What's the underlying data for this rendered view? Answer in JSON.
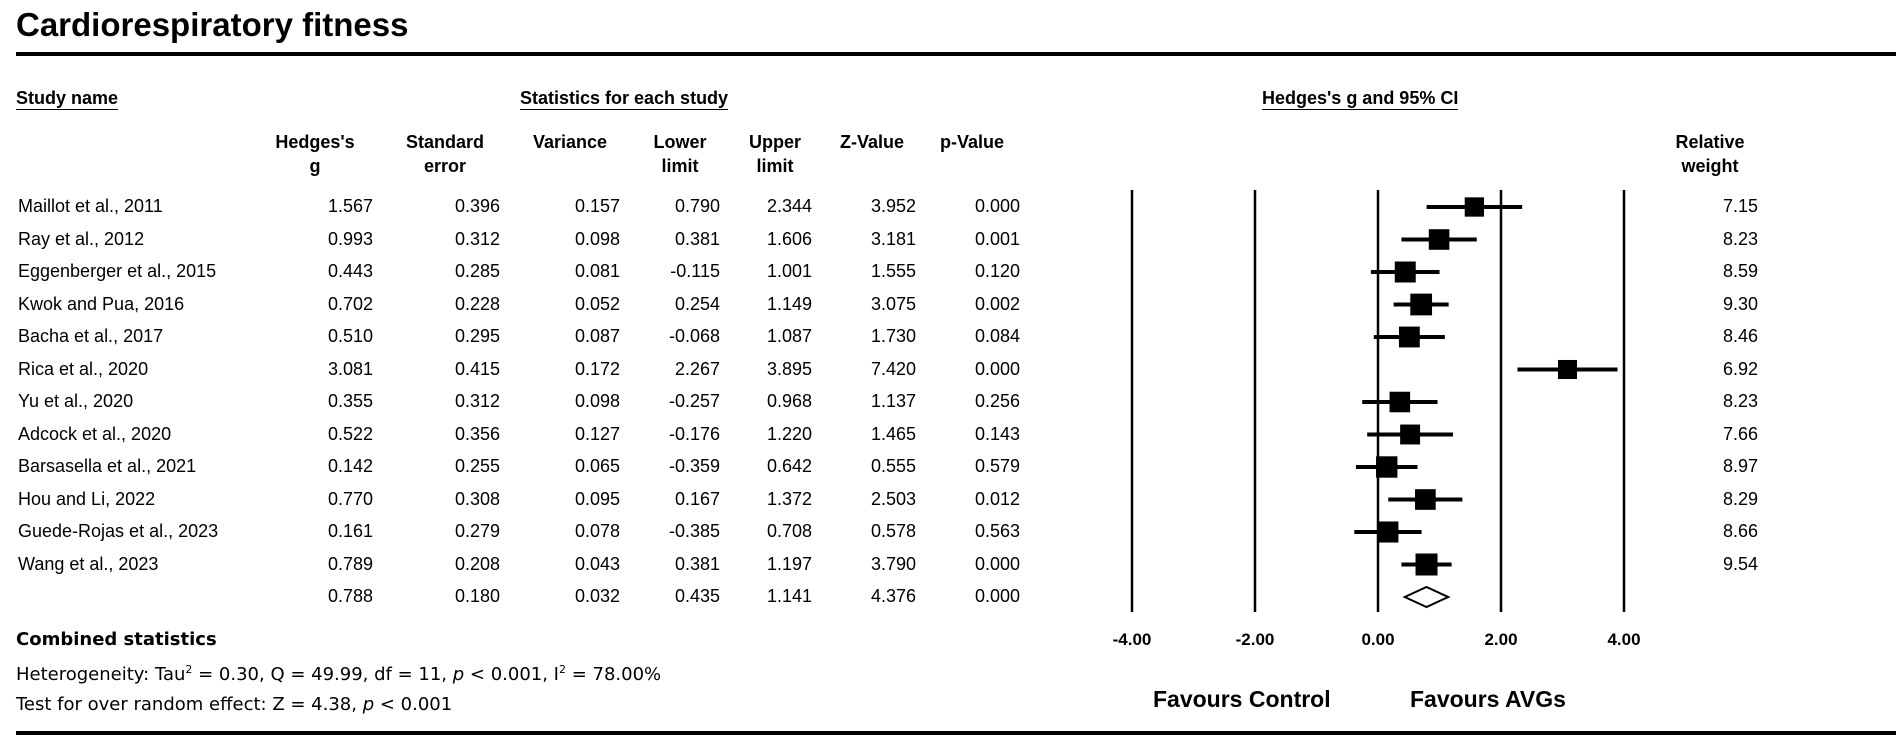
{
  "title": "Cardiorespiratory fitness",
  "headers": {
    "study_name": "Study name",
    "stats_group": "Statistics for each study",
    "plot_group": "Hedges's g and 95% CI",
    "columns": [
      {
        "line1": "Hedges's",
        "line2": "g"
      },
      {
        "line1": "Standard",
        "line2": "error"
      },
      {
        "line1": "",
        "line2": "Variance"
      },
      {
        "line1": "Lower",
        "line2": "limit"
      },
      {
        "line1": "Upper",
        "line2": "limit"
      },
      {
        "line1": "",
        "line2": "Z-Value"
      },
      {
        "line1": "",
        "line2": "p-Value"
      }
    ],
    "weight": {
      "line1": "Relative",
      "line2": "weight"
    }
  },
  "rows": [
    {
      "study": "Maillot et al., 2011",
      "g": "1.567",
      "se": "0.396",
      "var": "0.157",
      "lower": "0.790",
      "upper": "2.344",
      "z": "3.952",
      "p": "0.000",
      "weight": "7.15"
    },
    {
      "study": "Ray et al., 2012",
      "g": "0.993",
      "se": "0.312",
      "var": "0.098",
      "lower": "0.381",
      "upper": "1.606",
      "z": "3.181",
      "p": "0.001",
      "weight": "8.23"
    },
    {
      "study": "Eggenberger et al., 2015",
      "g": "0.443",
      "se": "0.285",
      "var": "0.081",
      "lower": "-0.115",
      "upper": "1.001",
      "z": "1.555",
      "p": "0.120",
      "weight": "8.59"
    },
    {
      "study": "Kwok and Pua, 2016",
      "g": "0.702",
      "se": "0.228",
      "var": "0.052",
      "lower": "0.254",
      "upper": "1.149",
      "z": "3.075",
      "p": "0.002",
      "weight": "9.30"
    },
    {
      "study": "Bacha et al., 2017",
      "g": "0.510",
      "se": "0.295",
      "var": "0.087",
      "lower": "-0.068",
      "upper": "1.087",
      "z": "1.730",
      "p": "0.084",
      "weight": "8.46"
    },
    {
      "study": "Rica et al., 2020",
      "g": "3.081",
      "se": "0.415",
      "var": "0.172",
      "lower": "2.267",
      "upper": "3.895",
      "z": "7.420",
      "p": "0.000",
      "weight": "6.92"
    },
    {
      "study": "Yu et al., 2020",
      "g": "0.355",
      "se": "0.312",
      "var": "0.098",
      "lower": "-0.257",
      "upper": "0.968",
      "z": "1.137",
      "p": "0.256",
      "weight": "8.23"
    },
    {
      "study": "Adcock et al., 2020",
      "g": "0.522",
      "se": "0.356",
      "var": "0.127",
      "lower": "-0.176",
      "upper": "1.220",
      "z": "1.465",
      "p": "0.143",
      "weight": "7.66"
    },
    {
      "study": "Barsasella et al., 2021",
      "g": "0.142",
      "se": "0.255",
      "var": "0.065",
      "lower": "-0.359",
      "upper": "0.642",
      "z": "0.555",
      "p": "0.579",
      "weight": "8.97"
    },
    {
      "study": "Hou and Li, 2022",
      "g": "0.770",
      "se": "0.308",
      "var": "0.095",
      "lower": "0.167",
      "upper": "1.372",
      "z": "2.503",
      "p": "0.012",
      "weight": "8.29"
    },
    {
      "study": "Guede-Rojas et al., 2023",
      "g": "0.161",
      "se": "0.279",
      "var": "0.078",
      "lower": "-0.385",
      "upper": "0.708",
      "z": "0.578",
      "p": "0.563",
      "weight": "8.66"
    },
    {
      "study": "Wang et al., 2023",
      "g": "0.789",
      "se": "0.208",
      "var": "0.043",
      "lower": "0.381",
      "upper": "1.197",
      "z": "3.790",
      "p": "0.000",
      "weight": "9.54"
    }
  ],
  "summary": {
    "study": "",
    "g": "0.788",
    "se": "0.180",
    "var": "0.032",
    "lower": "0.435",
    "upper": "1.141",
    "z": "4.376",
    "p": "0.000",
    "weight": ""
  },
  "combined": {
    "heading": "Combined statistics",
    "heterogeneity_pre": "Heterogeneity: Tau",
    "heterogeneity_sup1": "2",
    "heterogeneity_mid": " = 0.30, Q = 49.99, df = 11, ",
    "heterogeneity_p": "p",
    "heterogeneity_mid2": " < 0.001, I",
    "heterogeneity_sup2": "2",
    "heterogeneity_post": " = 78.00%",
    "test_pre": "Test for over random effect: Z = 4.38, ",
    "test_p": "p",
    "test_post": " < 0.001"
  },
  "chart_data": {
    "type": "forest",
    "title": "Hedges's g and 95% CI",
    "xlim": [
      -4,
      4
    ],
    "ticks": [
      "-4.00",
      "-2.00",
      "0.00",
      "2.00",
      "4.00"
    ],
    "tick_values": [
      -4,
      -2,
      0,
      2,
      4
    ],
    "studies": [
      {
        "name": "Maillot et al., 2011",
        "g": 1.567,
        "lower": 0.79,
        "upper": 2.344,
        "weight": 7.15
      },
      {
        "name": "Ray et al., 2012",
        "g": 0.993,
        "lower": 0.381,
        "upper": 1.606,
        "weight": 8.23
      },
      {
        "name": "Eggenberger et al., 2015",
        "g": 0.443,
        "lower": -0.115,
        "upper": 1.001,
        "weight": 8.59
      },
      {
        "name": "Kwok and Pua, 2016",
        "g": 0.702,
        "lower": 0.254,
        "upper": 1.149,
        "weight": 9.3
      },
      {
        "name": "Bacha et al., 2017",
        "g": 0.51,
        "lower": -0.068,
        "upper": 1.087,
        "weight": 8.46
      },
      {
        "name": "Rica et al., 2020",
        "g": 3.081,
        "lower": 2.267,
        "upper": 3.895,
        "weight": 6.92
      },
      {
        "name": "Yu et al., 2020",
        "g": 0.355,
        "lower": -0.257,
        "upper": 0.968,
        "weight": 8.23
      },
      {
        "name": "Adcock et al., 2020",
        "g": 0.522,
        "lower": -0.176,
        "upper": 1.22,
        "weight": 7.66
      },
      {
        "name": "Barsasella et al., 2021",
        "g": 0.142,
        "lower": -0.359,
        "upper": 0.642,
        "weight": 8.97
      },
      {
        "name": "Hou and Li, 2022",
        "g": 0.77,
        "lower": 0.167,
        "upper": 1.372,
        "weight": 8.29
      },
      {
        "name": "Guede-Rojas et al., 2023",
        "g": 0.161,
        "lower": -0.385,
        "upper": 0.708,
        "weight": 8.66
      },
      {
        "name": "Wang et al., 2023",
        "g": 0.789,
        "lower": 0.381,
        "upper": 1.197,
        "weight": 9.54
      }
    ],
    "pooled": {
      "g": 0.788,
      "lower": 0.435,
      "upper": 1.141
    },
    "favours_left": "Favours Control",
    "favours_right": "Favours AVGs"
  }
}
